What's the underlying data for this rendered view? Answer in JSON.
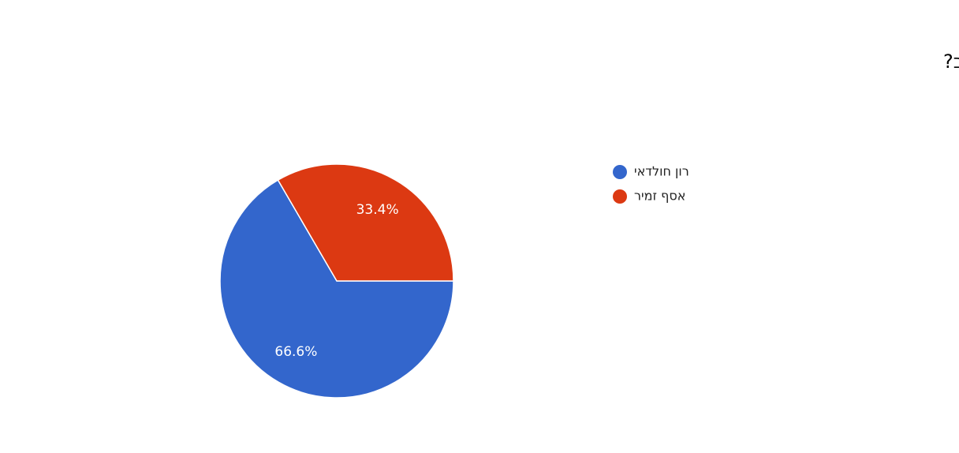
{
  "chart_data": {
    "type": "pie",
    "title": "מי ינצח בבחירות בתל אביב?",
    "categories": [
      "רון חולדאי",
      "אסף זמיר"
    ],
    "values": [
      66.6,
      33.4
    ],
    "value_labels": [
      "66.6%",
      "33.4%"
    ],
    "colors": [
      "#3366cc",
      "#dc3912"
    ],
    "legend": "right"
  }
}
